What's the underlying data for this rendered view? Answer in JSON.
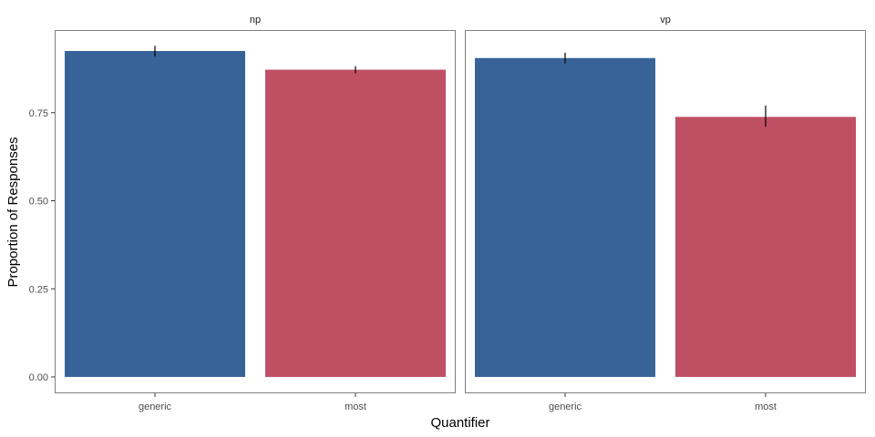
{
  "chart_data": {
    "type": "bar",
    "facet_variable": "",
    "xlabel": "Quantifier",
    "ylabel": "Proportion of Responses",
    "ylim": [
      0,
      0.97
    ],
    "yticks": [
      0.0,
      0.25,
      0.5,
      0.75
    ],
    "ytick_labels": [
      "0.00",
      "0.25",
      "0.50",
      "0.75"
    ],
    "categories": [
      "generic",
      "most"
    ],
    "colors": {
      "generic": "#386399",
      "most": "#bf5063"
    },
    "grid": false,
    "panels": [
      {
        "title": "np",
        "bars": [
          {
            "category": "generic",
            "value": 0.925,
            "err_low": 0.91,
            "err_high": 0.94
          },
          {
            "category": "most",
            "value": 0.872,
            "err_low": 0.862,
            "err_high": 0.882
          }
        ]
      },
      {
        "title": "vp",
        "bars": [
          {
            "category": "generic",
            "value": 0.905,
            "err_low": 0.89,
            "err_high": 0.92
          },
          {
            "category": "most",
            "value": 0.738,
            "err_low": 0.71,
            "err_high": 0.77
          }
        ]
      }
    ]
  }
}
